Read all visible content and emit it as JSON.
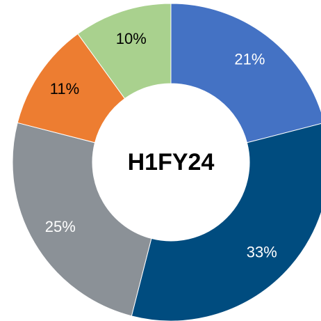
{
  "chart_data": {
    "type": "donut",
    "title": "H1FY24",
    "categories": [
      null,
      null,
      null,
      null,
      null
    ],
    "values": [
      21,
      33,
      25,
      11,
      10
    ],
    "value_labels": [
      "21%",
      "33%",
      "25%",
      "11%",
      "10%"
    ],
    "colors": [
      "#4472c4",
      "#004c7f",
      "#8b9197",
      "#ed7d31",
      "#a9d18e"
    ],
    "label_colors": [
      "#ffffff",
      "#ffffff",
      "#ffffff",
      "#000000",
      "#000000"
    ]
  }
}
